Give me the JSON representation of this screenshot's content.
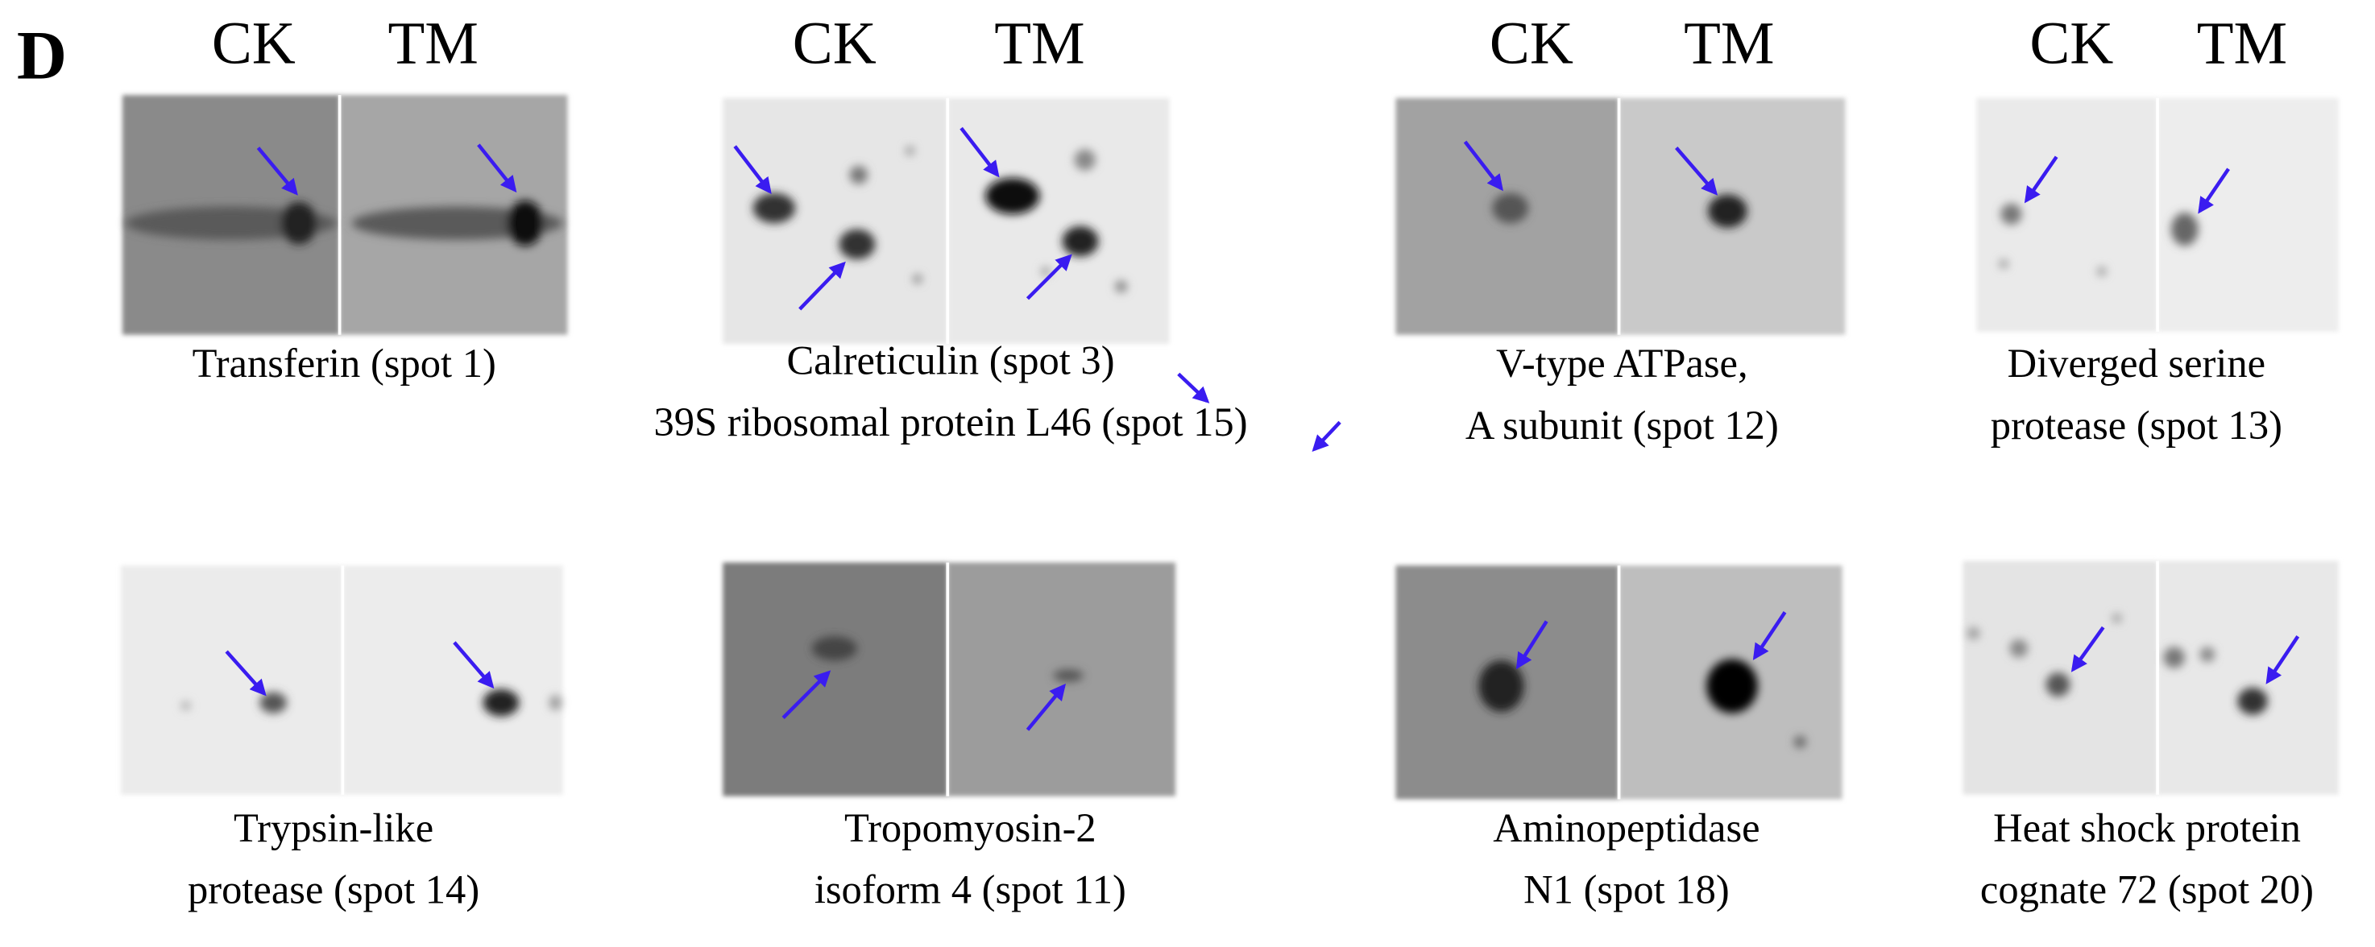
{
  "panel_label": "D",
  "column_headers": [
    [
      "CK",
      "TM"
    ],
    [
      "CK",
      "TM"
    ],
    [
      "CK",
      "TM"
    ],
    [
      "CK",
      "TM"
    ]
  ],
  "panels": [
    {
      "caption": [
        "Transferin (spot 1)"
      ]
    },
    {
      "caption": [
        "Calreticulin (spot 3)",
        "39S ribosomal protein L46 (spot 15)"
      ]
    },
    {
      "caption": [
        "V-type ATPase,",
        "A subunit (spot 12)"
      ]
    },
    {
      "caption": [
        "Diverged serine",
        "protease (spot 13)"
      ]
    },
    {
      "caption": [
        "Trypsin-like",
        "protease (spot 14)"
      ]
    },
    {
      "caption": [
        "Tropomyosin-2",
        "isoform 4 (spot 11)"
      ]
    },
    {
      "caption": [
        "Aminopeptidase",
        "N1 (spot 18)"
      ]
    },
    {
      "caption": [
        "Heat shock protein",
        "cognate 72 (spot 20)"
      ]
    }
  ]
}
